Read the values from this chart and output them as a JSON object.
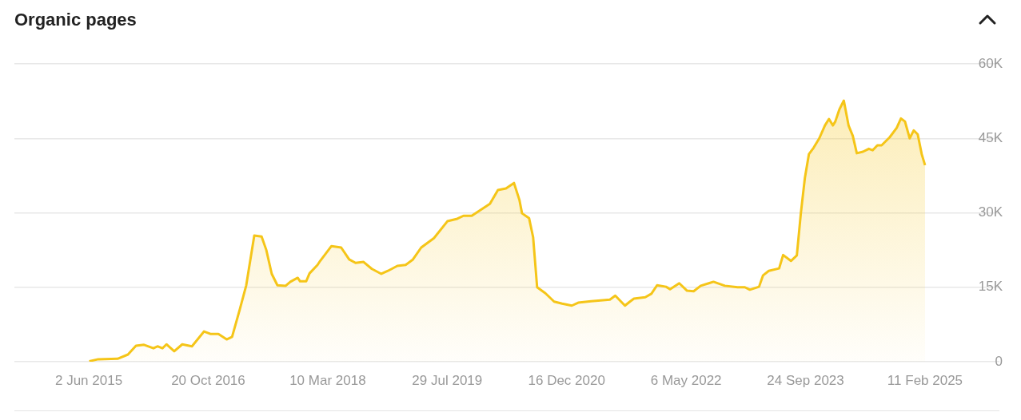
{
  "chart_data": {
    "type": "area",
    "title": "Organic pages",
    "x": [
      "2015-06-04",
      "2015-07-12",
      "2015-10-02",
      "2015-11-15",
      "2015-12-19",
      "2016-01-22",
      "2016-03-02",
      "2016-03-19",
      "2016-04-09",
      "2016-04-26",
      "2016-05-29",
      "2016-07-02",
      "2016-08-12",
      "2016-10-02",
      "2016-10-29",
      "2016-12-02",
      "2017-01-06",
      "2017-01-29",
      "2017-03-03",
      "2017-03-30",
      "2017-05-03",
      "2017-06-03",
      "2017-06-23",
      "2017-07-16",
      "2017-08-09",
      "2017-09-13",
      "2017-10-03",
      "2017-11-03",
      "2017-11-13",
      "2017-12-09",
      "2017-12-23",
      "2018-01-26",
      "2018-02-06",
      "2018-03-26",
      "2018-05-06",
      "2018-06-09",
      "2018-07-06",
      "2018-08-09",
      "2018-09-13",
      "2018-10-23",
      "2018-11-20",
      "2018-12-30",
      "2019-02-03",
      "2019-03-06",
      "2019-04-10",
      "2019-06-03",
      "2019-07-30",
      "2019-09-10",
      "2019-10-06",
      "2019-11-10",
      "2020-01-26",
      "2020-02-29",
      "2020-04-03",
      "2020-05-07",
      "2020-05-30",
      "2020-06-10",
      "2020-07-10",
      "2020-07-27",
      "2020-08-13",
      "2020-09-17",
      "2020-10-24",
      "2020-11-27",
      "2021-01-07",
      "2021-02-03",
      "2021-03-30",
      "2021-06-17",
      "2021-07-10",
      "2021-08-20",
      "2021-09-10",
      "2021-09-27",
      "2021-11-14",
      "2021-12-10",
      "2022-01-03",
      "2022-02-10",
      "2022-02-27",
      "2022-04-07",
      "2022-05-10",
      "2022-06-07",
      "2022-07-07",
      "2022-08-10",
      "2022-08-30",
      "2022-10-17",
      "2022-12-10",
      "2023-01-10",
      "2023-01-31",
      "2023-03-11",
      "2023-03-28",
      "2023-04-21",
      "2023-06-04",
      "2023-06-21",
      "2023-07-24",
      "2023-08-18",
      "2023-09-04",
      "2023-09-21",
      "2023-10-08",
      "2023-10-28",
      "2023-11-21",
      "2023-12-15",
      "2024-01-01",
      "2024-01-18",
      "2024-01-28",
      "2024-02-14",
      "2024-03-04",
      "2024-03-24",
      "2024-04-11",
      "2024-04-28",
      "2024-05-24",
      "2024-06-18",
      "2024-07-04",
      "2024-07-24",
      "2024-08-11",
      "2024-09-14",
      "2024-10-14",
      "2024-11-01",
      "2024-11-18",
      "2024-12-08",
      "2024-12-25",
      "2025-01-11",
      "2025-01-28",
      "2025-02-11"
    ],
    "series": [
      {
        "color": "#f5c518",
        "values": [
          100,
          500,
          600,
          1450,
          3200,
          3400,
          2700,
          3100,
          2700,
          3500,
          2100,
          3500,
          3100,
          6100,
          5600,
          5600,
          4500,
          5000,
          10600,
          15400,
          25400,
          25200,
          22500,
          17700,
          15400,
          15300,
          16100,
          16900,
          16200,
          16200,
          17800,
          19500,
          20300,
          23300,
          23000,
          20600,
          19900,
          20100,
          18700,
          17700,
          18300,
          19300,
          19500,
          20600,
          23000,
          24900,
          28300,
          28800,
          29400,
          29400,
          31800,
          34600,
          34900,
          36000,
          32600,
          29900,
          28900,
          25100,
          15000,
          13800,
          12100,
          11700,
          11300,
          11900,
          12200,
          12500,
          13300,
          11300,
          12100,
          12700,
          13000,
          13700,
          15400,
          15100,
          14600,
          15800,
          14300,
          14200,
          15300,
          15800,
          16100,
          15300,
          15000,
          15000,
          14500,
          15100,
          17400,
          18300,
          18800,
          21500,
          20300,
          21400,
          29900,
          37000,
          41800,
          43100,
          45000,
          47600,
          48900,
          47600,
          48400,
          50800,
          52600,
          47600,
          45500,
          42000,
          42300,
          42900,
          42600,
          43600,
          43600,
          45200,
          47100,
          49000,
          48400,
          45000,
          46600,
          45800,
          41800,
          39600
        ]
      }
    ],
    "xlim": [
      "2014-07-22",
      "2025-12-23"
    ],
    "xticks": [
      {
        "value": "2015-06-02",
        "label": "2 Jun 2015"
      },
      {
        "value": "2016-10-20",
        "label": "20 Oct 2016"
      },
      {
        "value": "2018-03-10",
        "label": "10 Mar 2018"
      },
      {
        "value": "2019-07-29",
        "label": "29 Jul 2019"
      },
      {
        "value": "2020-12-16",
        "label": "16 Dec 2020"
      },
      {
        "value": "2022-05-06",
        "label": "6 May 2022"
      },
      {
        "value": "2023-09-24",
        "label": "24 Sep 2023"
      },
      {
        "value": "2025-02-11",
        "label": "11 Feb 2025"
      }
    ],
    "ylim": [
      0,
      60000
    ],
    "yticks": [
      0,
      {
        "value": 15000,
        "label": "15K"
      },
      {
        "value": 30000,
        "label": "30K"
      },
      {
        "value": 45000,
        "label": "45K"
      },
      {
        "value": 60000,
        "label": "60K"
      }
    ],
    "grid": "y"
  }
}
